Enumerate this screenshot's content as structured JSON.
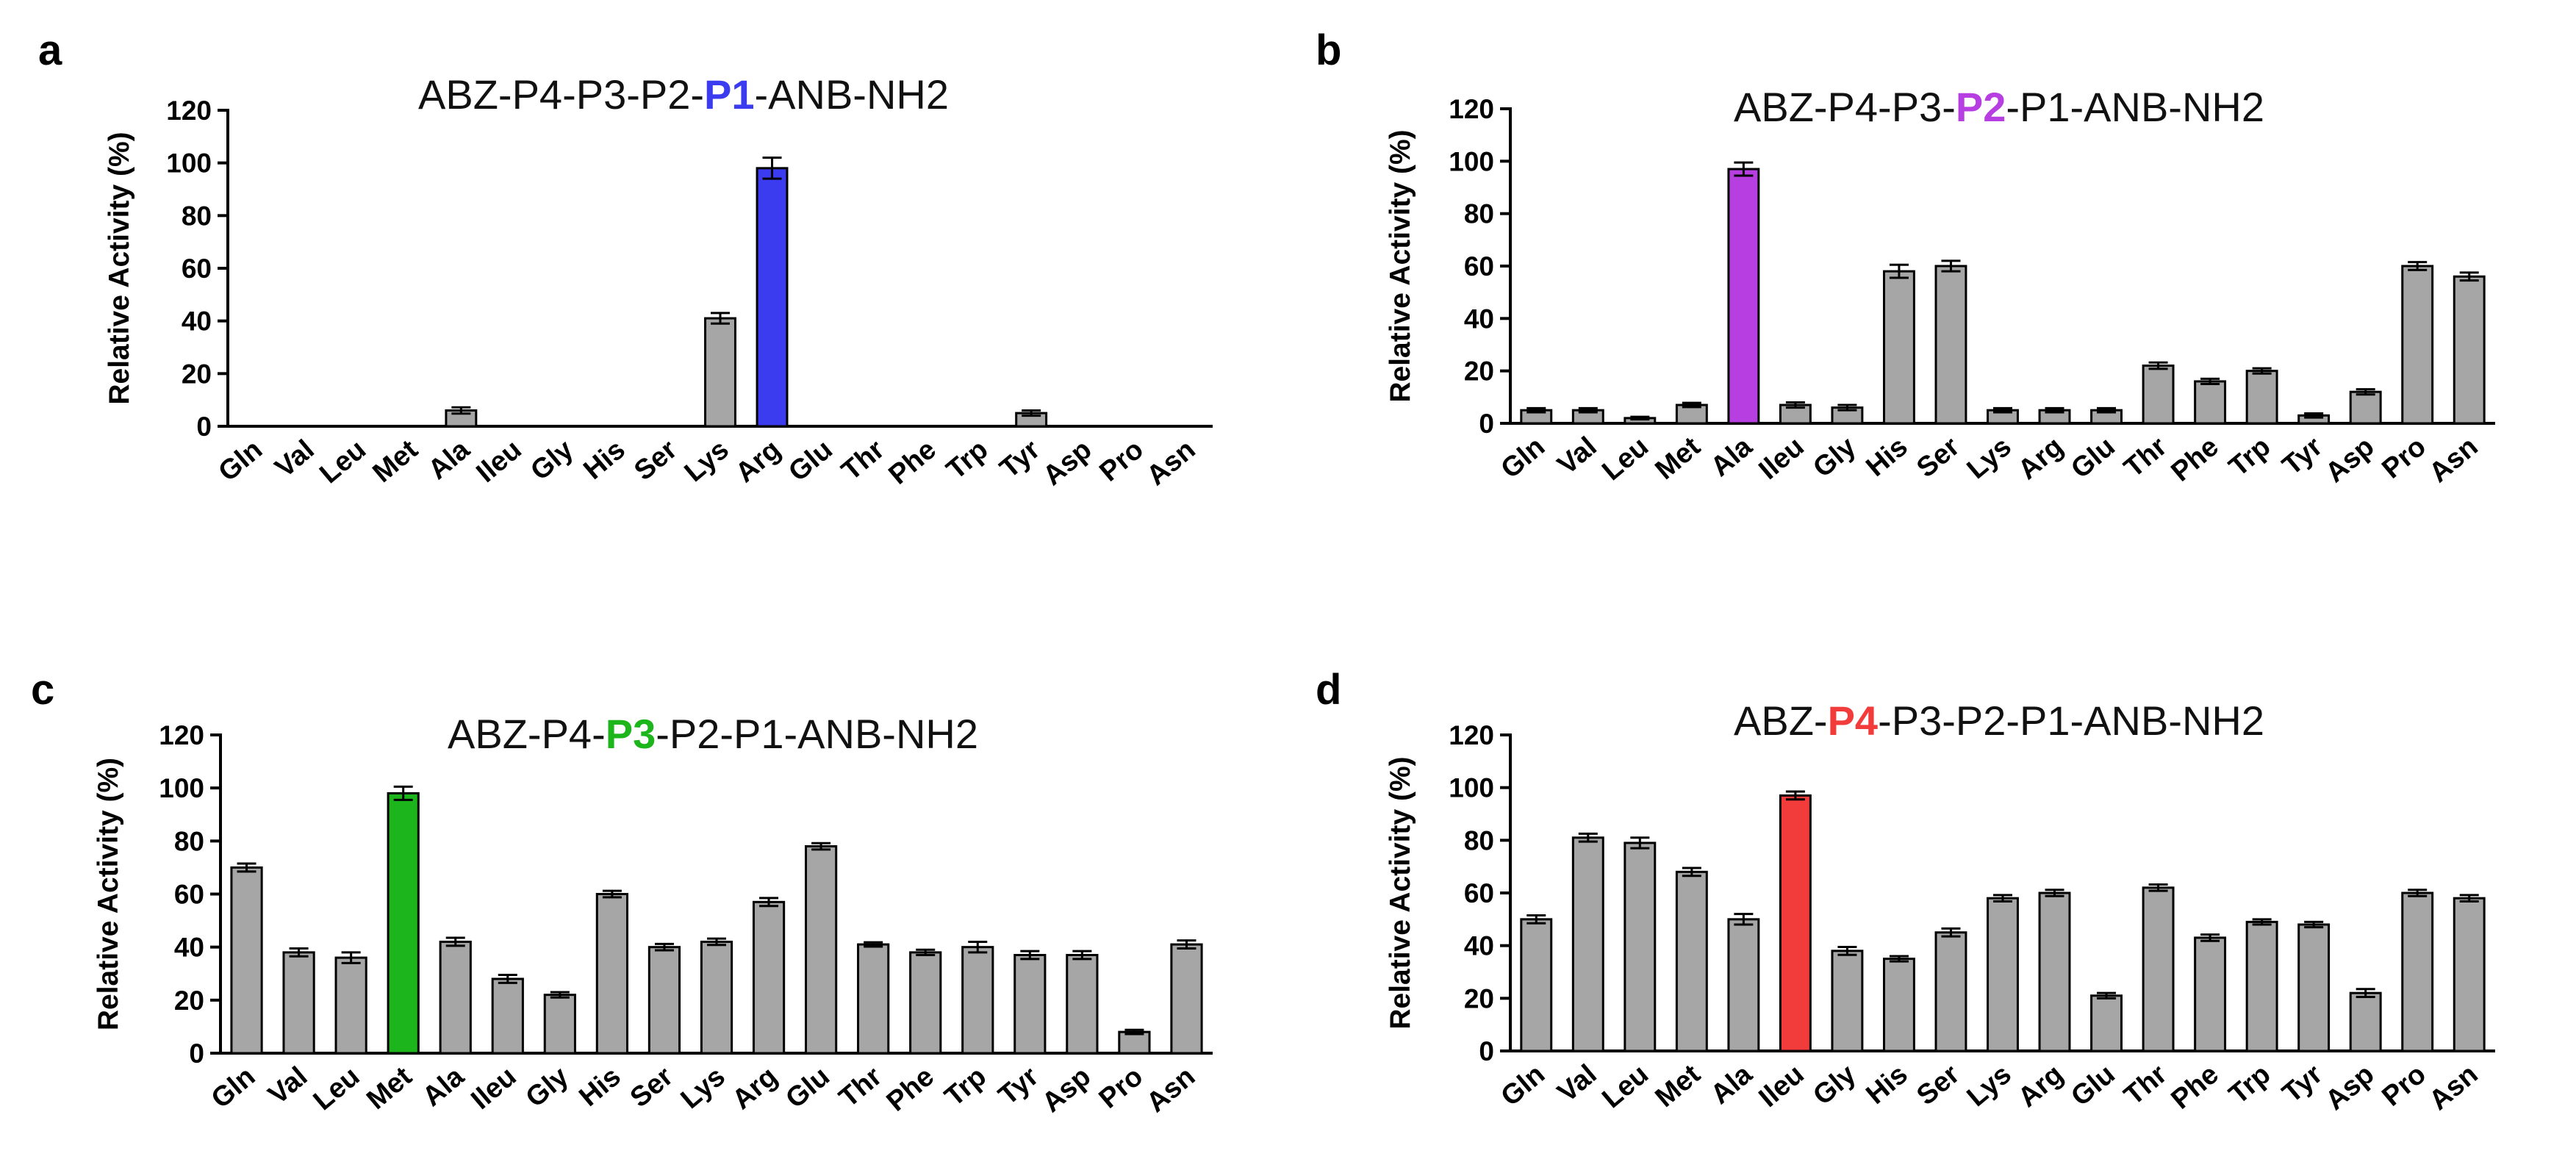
{
  "chart_data": [
    {
      "type": "bar",
      "panel": "a",
      "title": {
        "prefix": "ABZ-P4-P3-P2-",
        "highlight": "P1",
        "suffix": "-ANB-NH2"
      },
      "highlight_color": "#3b3bf0",
      "base_color": "#a6a6a6",
      "ylabel": "Relative Activity (%)",
      "ylim": [
        0,
        120
      ],
      "yticks": [
        "0",
        "20",
        "40",
        "60",
        "80",
        "100",
        "120"
      ],
      "categories": [
        "Gln",
        "Val",
        "Leu",
        "Met",
        "Ala",
        "Ileu",
        "Gly",
        "His",
        "Ser",
        "Lys",
        "Arg",
        "Glu",
        "Thr",
        "Phe",
        "Trp",
        "Tyr",
        "Asp",
        "Pro",
        "Asn"
      ],
      "values": [
        0,
        0,
        0,
        0,
        6,
        0,
        0,
        0,
        0,
        41,
        98,
        0,
        0,
        0,
        0,
        5,
        0,
        0,
        0
      ],
      "errors": [
        0,
        0,
        0,
        0,
        1.2,
        0,
        0,
        0,
        0,
        2,
        4,
        0,
        0,
        0,
        0,
        1,
        0,
        0,
        0
      ],
      "highlight_index": 10
    },
    {
      "type": "bar",
      "panel": "b",
      "title": {
        "prefix": "ABZ-P4-P3-",
        "highlight": "P2",
        "suffix": "-P1-ANB-NH2"
      },
      "highlight_color": "#b73ee0",
      "base_color": "#a6a6a6",
      "ylabel": "Relative Activity (%)",
      "ylim": [
        0,
        120
      ],
      "yticks": [
        "0",
        "20",
        "40",
        "60",
        "80",
        "100",
        "120"
      ],
      "categories": [
        "Gln",
        "Val",
        "Leu",
        "Met",
        "Ala",
        "Ileu",
        "Gly",
        "His",
        "Ser",
        "Lys",
        "Arg",
        "Glu",
        "Thr",
        "Phe",
        "Trp",
        "Tyr",
        "Asp",
        "Pro",
        "Asn"
      ],
      "values": [
        5,
        5,
        2,
        7,
        97,
        7,
        6,
        58,
        60,
        5,
        5,
        5,
        22,
        16,
        20,
        3,
        12,
        60,
        56
      ],
      "errors": [
        0.8,
        0.8,
        0.5,
        0.8,
        2.5,
        1,
        1,
        2.5,
        2,
        0.8,
        0.8,
        0.8,
        1.2,
        1,
        1,
        0.8,
        1,
        1.5,
        1.5
      ],
      "highlight_index": 4
    },
    {
      "type": "bar",
      "panel": "c",
      "title": {
        "prefix": "ABZ-P4-",
        "highlight": "P3",
        "suffix": "-P2-P1-ANB-NH2"
      },
      "highlight_color": "#1cb51c",
      "base_color": "#a6a6a6",
      "ylabel": "Relative Activity (%)",
      "ylim": [
        0,
        120
      ],
      "yticks": [
        "0",
        "20",
        "40",
        "60",
        "80",
        "100",
        "120"
      ],
      "categories": [
        "Gln",
        "Val",
        "Leu",
        "Met",
        "Ala",
        "Ileu",
        "Gly",
        "His",
        "Ser",
        "Lys",
        "Arg",
        "Glu",
        "Thr",
        "Phe",
        "Trp",
        "Tyr",
        "Asp",
        "Pro",
        "Asn"
      ],
      "values": [
        70,
        38,
        36,
        98,
        42,
        28,
        22,
        60,
        40,
        42,
        57,
        78,
        41,
        38,
        40,
        37,
        37,
        8,
        41
      ],
      "errors": [
        1.5,
        1.5,
        2,
        2.5,
        1.5,
        1.5,
        1,
        1.2,
        1.2,
        1.2,
        1.5,
        1.2,
        0.8,
        1,
        2,
        1.5,
        1.5,
        0.8,
        1.5
      ],
      "highlight_index": 3
    },
    {
      "type": "bar",
      "panel": "d",
      "title": {
        "prefix": "ABZ-",
        "highlight": "P4",
        "suffix": "-P3-P2-P1-ANB-NH2"
      },
      "highlight_color": "#f23c3c",
      "base_color": "#a6a6a6",
      "ylabel": "Relative Activity (%)",
      "ylim": [
        0,
        120
      ],
      "yticks": [
        "0",
        "20",
        "40",
        "60",
        "80",
        "100",
        "120"
      ],
      "categories": [
        "Gln",
        "Val",
        "Leu",
        "Met",
        "Ala",
        "Ileu",
        "Gly",
        "His",
        "Ser",
        "Lys",
        "Arg",
        "Glu",
        "Thr",
        "Phe",
        "Trp",
        "Tyr",
        "Asp",
        "Pro",
        "Asn"
      ],
      "values": [
        50,
        81,
        79,
        68,
        50,
        97,
        38,
        35,
        45,
        58,
        60,
        21,
        62,
        43,
        49,
        48,
        22,
        60,
        58
      ],
      "errors": [
        1.5,
        1.5,
        2,
        1.5,
        2,
        1.5,
        1.5,
        1,
        1.5,
        1.2,
        1.2,
        1,
        1.2,
        1.2,
        1,
        1,
        1.5,
        1.2,
        1.2
      ],
      "highlight_index": 5
    }
  ]
}
